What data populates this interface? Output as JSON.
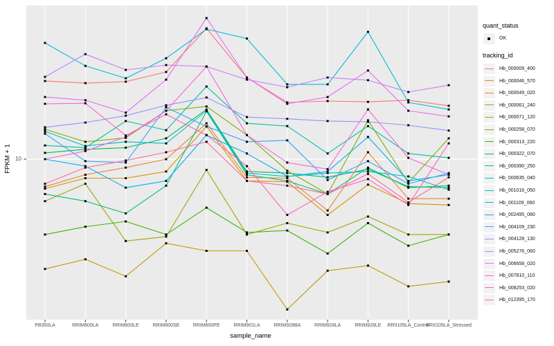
{
  "figure": {
    "y_axis": {
      "title": "FPKM + 1",
      "tick_label": "10"
    },
    "x_axis": {
      "title": "sample_name"
    },
    "legend": {
      "quant_status": {
        "title": "quant_status",
        "items": [
          {
            "label": "OK",
            "marker": "point"
          }
        ]
      },
      "tracking_id": {
        "title": "tracking_id"
      }
    },
    "colors": {
      "panel_bg": "#EBEBEB",
      "grid": "#FFFFFF",
      "axis_text": "#4D4D4D",
      "tick": "#333333",
      "point": "#000000",
      "legend_key_bg": "#F2F2F2"
    }
  },
  "chart_data": {
    "type": "line",
    "title": "",
    "xlabel": "sample_name",
    "ylabel": "FPKM + 1",
    "y_scale": "log10",
    "y_tick_labels": [
      "10"
    ],
    "ylim": [
      1,
      100
    ],
    "grid": "vertical category gridlines and horizontal gridline at y=10",
    "legend_position": "right",
    "marker": "black point (quant_status OK)",
    "categories": [
      "PB350LA",
      "RRIM600LA",
      "RRIM600LE",
      "RRIM600SE",
      "RRIM600PE",
      "RRIM901LA",
      "RRIM928BA",
      "RRIM928LA",
      "RRIM928LE",
      "RRII105LA_Control",
      "RRII105LA_Stressed"
    ],
    "series": [
      {
        "name": "Hb_000009_400",
        "color": "#F8766D",
        "values": [
          32.6,
          31.6,
          32.3,
          37.4,
          72.3,
          34.4,
          23.6,
          24.1,
          23.8,
          24.4,
          22.4
        ]
      },
      {
        "name": "Hb_000046_570",
        "color": "#EA8331",
        "values": [
          6.6,
          7.9,
          8.8,
          10,
          17.2,
          7.6,
          7.5,
          4.6,
          11.1,
          5.5,
          5.5
        ]
      },
      {
        "name": "Hb_000049_020",
        "color": "#D89000",
        "values": [
          6.4,
          7.5,
          7.5,
          8.3,
          16.4,
          7.2,
          7.1,
          4.3,
          6.8,
          5.1,
          5.0
        ]
      },
      {
        "name": "Hb_000061_240",
        "color": "#C09B00",
        "values": [
          1.9,
          2.2,
          1.7,
          2.8,
          2.5,
          2.5,
          1.03,
          1.85,
          2.0,
          1.46,
          1.57
        ]
      },
      {
        "name": "Hb_000071_120",
        "color": "#A3A500",
        "values": [
          5.3,
          6.9,
          2.9,
          3.1,
          8.5,
          3.2,
          3.8,
          3.3,
          4.2,
          3.2,
          3.2
        ]
      },
      {
        "name": "Hb_000258_070",
        "color": "#7CAE00",
        "values": [
          15.7,
          13.0,
          13.8,
          20.8,
          22.2,
          14.4,
          8.4,
          5.9,
          18.0,
          7.0,
          13.7
        ]
      },
      {
        "name": "Hb_000313_220",
        "color": "#39B600",
        "values": [
          3.2,
          3.6,
          3.9,
          3.2,
          4.8,
          3.3,
          3.4,
          2.4,
          3.8,
          2.7,
          3.2
        ]
      },
      {
        "name": "Hb_000322_070",
        "color": "#00BB4E",
        "values": [
          11.0,
          11.6,
          11.9,
          13.7,
          21.2,
          8.3,
          8.1,
          7.6,
          8.6,
          6.6,
          6.5
        ]
      },
      {
        "name": "Hb_000390_250",
        "color": "#00BF7D",
        "values": [
          5.9,
          5.3,
          4.4,
          6.7,
          20.6,
          7.9,
          7.2,
          5.9,
          8.8,
          6.5,
          6.7
        ]
      },
      {
        "name": "Hb_000635_040",
        "color": "#00C1A3",
        "values": [
          12.3,
          11.9,
          17.8,
          15.5,
          30.0,
          17.2,
          16.5,
          10.9,
          16.5,
          10.9,
          10.2
        ]
      },
      {
        "name": "Hb_001016_050",
        "color": "#00BFC4",
        "values": [
          15.2,
          12.2,
          13.0,
          12.7,
          20.8,
          8.1,
          7.7,
          8.1,
          8.3,
          7.7,
          6.3
        ]
      },
      {
        "name": "Hb_001109_060",
        "color": "#00BBDA",
        "values": [
          58,
          41,
          34,
          46,
          71.5,
          62,
          31,
          31,
          68.6,
          23.6,
          21.2
        ]
      },
      {
        "name": "Hb_002495_080",
        "color": "#00B0F6",
        "values": [
          10,
          9.0,
          6.5,
          7.2,
          14.4,
          10.9,
          7.7,
          8.3,
          14.0,
          7.2,
          7.9
        ]
      },
      {
        "name": "Hb_004109_230",
        "color": "#35A2FF",
        "values": [
          14.7,
          9.7,
          9.5,
          21.9,
          16.4,
          13.0,
          13.3,
          7.3,
          9.7,
          6.9,
          8.1
        ]
      },
      {
        "name": "Hb_004128_130",
        "color": "#9590FF",
        "values": [
          16.2,
          17.4,
          19.3,
          22.6,
          25.4,
          18.9,
          18.4,
          17.8,
          17.6,
          16.7,
          15.4
        ]
      },
      {
        "name": "Hb_005276_060",
        "color": "#C77CFF",
        "values": [
          34.7,
          49,
          38.6,
          41.5,
          40.6,
          33.3,
          29.7,
          34.4,
          33,
          27.6,
          30.6
        ]
      },
      {
        "name": "Hb_006658_020",
        "color": "#E76BF3",
        "values": [
          25.6,
          24.4,
          20.2,
          33.3,
          84.5,
          34.4,
          23.1,
          25.6,
          38.2,
          20.8,
          19.1
        ]
      },
      {
        "name": "Hb_007810_110",
        "color": "#FA62DB",
        "values": [
          10.0,
          11.3,
          14.0,
          20.8,
          40.6,
          14.4,
          9.5,
          8.6,
          21.2,
          10.2,
          7.9
        ]
      },
      {
        "name": "Hb_008253_020",
        "color": "#FF62BC",
        "values": [
          23.1,
          23.3,
          14.3,
          19.7,
          14.4,
          9.0,
          4.3,
          6.1,
          7.4,
          5.0,
          12.7
        ]
      },
      {
        "name": "Hb_012395_170",
        "color": "#FF6A98",
        "values": [
          6.9,
          8.8,
          9.8,
          11.1,
          13.0,
          7.2,
          6.7,
          5.9,
          8.0,
          5.2,
          7.6
        ]
      }
    ]
  }
}
